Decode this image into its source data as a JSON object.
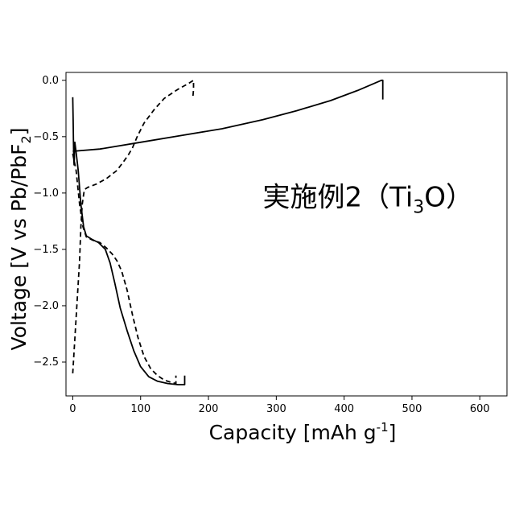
{
  "chart_data": {
    "type": "line",
    "title": "",
    "xlabel": "Capacity [mAh g",
    "xlabel_sup": "-1",
    "xlabel_end": "]",
    "ylabel": "Voltage [V vs Pb/PbF",
    "ylabel_sub": "2",
    "ylabel_end": "]",
    "xlim": [
      -10,
      640
    ],
    "ylim": [
      -2.8,
      0.07
    ],
    "xticks": [
      0,
      100,
      200,
      300,
      400,
      500,
      600
    ],
    "yticks": [
      0.0,
      -0.5,
      -1.0,
      -1.5,
      -2.0,
      -2.5
    ],
    "xtick_labels": [
      "0",
      "100",
      "200",
      "300",
      "400",
      "500",
      "600"
    ],
    "ytick_labels": [
      "0.0",
      "−0.5",
      "−1.0",
      "−1.5",
      "−2.0",
      "−2.5"
    ],
    "annotation": {
      "text": "実施例2（Ti",
      "sub": "3",
      "text_end": "O）",
      "at": [
        280,
        -1.12
      ]
    },
    "series": [
      {
        "style": "solid",
        "points": [
          [
            0,
            -0.15
          ],
          [
            0.5,
            -0.35
          ],
          [
            1,
            -0.55
          ],
          [
            1.5,
            -0.7
          ],
          [
            2,
            -0.75
          ],
          [
            3,
            -0.55
          ],
          [
            5,
            -0.64
          ],
          [
            8,
            -0.8
          ],
          [
            12,
            -1.1
          ],
          [
            16,
            -1.3
          ],
          [
            20,
            -1.38
          ],
          [
            28,
            -1.41
          ],
          [
            38,
            -1.44
          ],
          [
            48,
            -1.5
          ],
          [
            55,
            -1.62
          ],
          [
            62,
            -1.8
          ],
          [
            70,
            -2.02
          ],
          [
            80,
            -2.22
          ],
          [
            90,
            -2.4
          ],
          [
            100,
            -2.54
          ],
          [
            112,
            -2.63
          ],
          [
            125,
            -2.67
          ],
          [
            140,
            -2.69
          ],
          [
            155,
            -2.7
          ],
          [
            165,
            -2.7
          ],
          [
            165,
            -2.62
          ]
        ]
      },
      {
        "style": "solid",
        "points": [
          [
            0,
            -0.63
          ],
          [
            40,
            -0.61
          ],
          [
            100,
            -0.55
          ],
          [
            160,
            -0.49
          ],
          [
            220,
            -0.43
          ],
          [
            280,
            -0.35
          ],
          [
            330,
            -0.27
          ],
          [
            380,
            -0.18
          ],
          [
            420,
            -0.09
          ],
          [
            455,
            0.0
          ],
          [
            457,
            0.0
          ],
          [
            457,
            -0.17
          ]
        ]
      },
      {
        "style": "dashed",
        "points": [
          [
            0,
            -2.6
          ],
          [
            2,
            -2.4
          ],
          [
            4,
            -2.2
          ],
          [
            6,
            -2.0
          ],
          [
            8,
            -1.8
          ],
          [
            10,
            -1.6
          ],
          [
            12,
            -1.3
          ],
          [
            14,
            -1.1
          ],
          [
            17,
            -0.97
          ],
          [
            22,
            -0.95
          ],
          [
            35,
            -0.92
          ],
          [
            50,
            -0.87
          ],
          [
            65,
            -0.8
          ],
          [
            75,
            -0.72
          ],
          [
            82,
            -0.66
          ],
          [
            88,
            -0.6
          ],
          [
            95,
            -0.5
          ],
          [
            105,
            -0.38
          ],
          [
            120,
            -0.26
          ],
          [
            135,
            -0.16
          ],
          [
            155,
            -0.08
          ],
          [
            170,
            -0.03
          ],
          [
            178,
            0.0
          ],
          [
            178,
            -0.08
          ],
          [
            177,
            -0.15
          ]
        ]
      },
      {
        "style": "dashed",
        "points": [
          [
            0,
            -0.65
          ],
          [
            5,
            -0.8
          ],
          [
            10,
            -1.1
          ],
          [
            15,
            -1.3
          ],
          [
            20,
            -1.39
          ],
          [
            30,
            -1.42
          ],
          [
            40,
            -1.44
          ],
          [
            50,
            -1.49
          ],
          [
            58,
            -1.54
          ],
          [
            65,
            -1.6
          ],
          [
            72,
            -1.69
          ],
          [
            80,
            -1.86
          ],
          [
            88,
            -2.08
          ],
          [
            96,
            -2.28
          ],
          [
            105,
            -2.45
          ],
          [
            115,
            -2.56
          ],
          [
            125,
            -2.62
          ],
          [
            135,
            -2.66
          ],
          [
            145,
            -2.68
          ],
          [
            152,
            -2.69
          ],
          [
            152,
            -2.62
          ]
        ]
      }
    ]
  }
}
